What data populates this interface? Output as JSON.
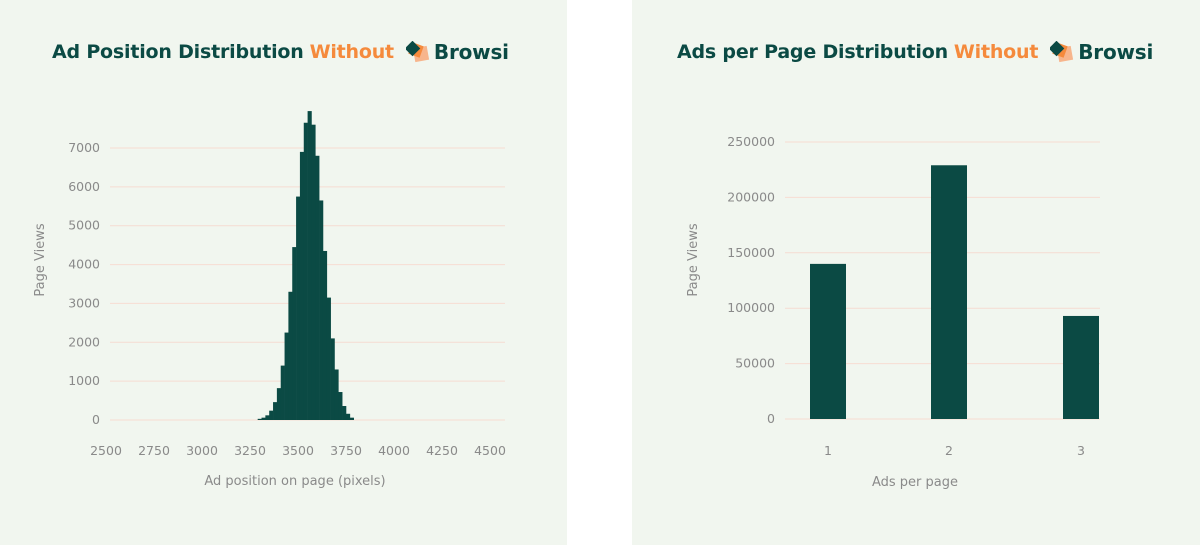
{
  "colors": {
    "background": "#f1f6ef",
    "bar": "#0b4a44",
    "accent": "#f58a3c",
    "grid": "#f6dcd2",
    "text": "#8a8a8a"
  },
  "logo": {
    "text": "Browsi",
    "icon": "browsi-logo-icon"
  },
  "chart_data": [
    {
      "type": "bar",
      "subtype": "histogram",
      "title": "Ad Position Distribution",
      "title_highlight": "Without",
      "xlabel": "Ad position on page (pixels)",
      "ylabel": "Page Views",
      "xlim": [
        2500,
        4500
      ],
      "ylim": [
        0,
        7800
      ],
      "xticks": [
        "2500",
        "2750",
        "3000",
        "3250",
        "3500",
        "3750",
        "4000",
        "4250",
        "4500"
      ],
      "yticks": [
        "0",
        "1000",
        "2000",
        "3000",
        "4000",
        "5000",
        "6000",
        "7000"
      ],
      "grid": "horizontal",
      "bin_width": 20,
      "bin_starts": [
        3290,
        3310,
        3330,
        3350,
        3370,
        3390,
        3410,
        3430,
        3450,
        3470,
        3490,
        3510,
        3530,
        3550,
        3570,
        3590,
        3610,
        3630,
        3650,
        3670,
        3690,
        3710,
        3730,
        3750,
        3770
      ],
      "values": [
        30,
        60,
        120,
        240,
        460,
        820,
        1400,
        2250,
        3300,
        4450,
        5750,
        6900,
        7650,
        7950,
        7600,
        6800,
        5650,
        4350,
        3150,
        2100,
        1300,
        720,
        360,
        160,
        60
      ]
    },
    {
      "type": "bar",
      "title": "Ads per Page Distribution",
      "title_highlight": "Without",
      "xlabel": "Ads per page",
      "ylabel": "Page Views",
      "categories": [
        "1",
        "2",
        "3"
      ],
      "values": [
        140000,
        229000,
        93000
      ],
      "ylim": [
        0,
        250000
      ],
      "yticks": [
        "0",
        "50000",
        "100000",
        "150000",
        "200000",
        "250000"
      ],
      "grid": "horizontal"
    }
  ]
}
